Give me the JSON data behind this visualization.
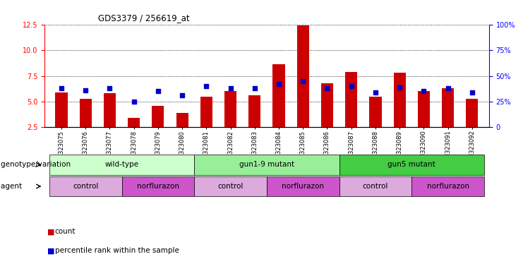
{
  "title": "GDS3379 / 256619_at",
  "samples": [
    "GSM323075",
    "GSM323076",
    "GSM323077",
    "GSM323078",
    "GSM323079",
    "GSM323080",
    "GSM323081",
    "GSM323082",
    "GSM323083",
    "GSM323084",
    "GSM323085",
    "GSM323086",
    "GSM323087",
    "GSM323088",
    "GSM323089",
    "GSM323090",
    "GSM323091",
    "GSM323092"
  ],
  "counts": [
    5.9,
    5.3,
    5.8,
    3.4,
    4.6,
    3.9,
    5.5,
    6.0,
    5.6,
    8.6,
    12.4,
    6.8,
    7.9,
    5.5,
    7.8,
    6.0,
    6.3,
    5.3
  ],
  "percentiles": [
    6.3,
    6.1,
    6.3,
    5.0,
    6.0,
    5.6,
    6.5,
    6.3,
    6.3,
    6.7,
    7.0,
    6.3,
    6.5,
    5.9,
    6.4,
    6.0,
    6.3,
    5.9
  ],
  "ylim_left": [
    2.5,
    12.5
  ],
  "ylim_right": [
    0,
    100
  ],
  "yticks_left": [
    2.5,
    5.0,
    7.5,
    10.0,
    12.5
  ],
  "yticks_right": [
    0,
    25,
    50,
    75,
    100
  ],
  "ytick_labels_left": [
    "2.5",
    "5.0",
    "7.5",
    "10.0",
    "12.5"
  ],
  "ytick_labels_right": [
    "0",
    "25%",
    "50%",
    "75%",
    "100%"
  ],
  "bar_color": "#cc0000",
  "dot_color": "#0000cc",
  "genotype_groups": [
    {
      "label": "wild-type",
      "start": 0,
      "end": 6,
      "color": "#ccffcc"
    },
    {
      "label": "gun1-9 mutant",
      "start": 6,
      "end": 12,
      "color": "#99ee99"
    },
    {
      "label": "gun5 mutant",
      "start": 12,
      "end": 18,
      "color": "#44cc44"
    }
  ],
  "agent_groups": [
    {
      "label": "control",
      "start": 0,
      "end": 3,
      "color": "#ddaadd"
    },
    {
      "label": "norflurazon",
      "start": 3,
      "end": 6,
      "color": "#cc55cc"
    },
    {
      "label": "control",
      "start": 6,
      "end": 9,
      "color": "#ddaadd"
    },
    {
      "label": "norflurazon",
      "start": 9,
      "end": 12,
      "color": "#cc55cc"
    },
    {
      "label": "control",
      "start": 12,
      "end": 15,
      "color": "#ddaadd"
    },
    {
      "label": "norflurazon",
      "start": 15,
      "end": 18,
      "color": "#cc55cc"
    }
  ],
  "genotype_label": "genotype/variation",
  "agent_label": "agent",
  "legend_count": "count",
  "legend_percentile": "percentile rank within the sample",
  "bar_width": 0.5,
  "dot_size": 25
}
